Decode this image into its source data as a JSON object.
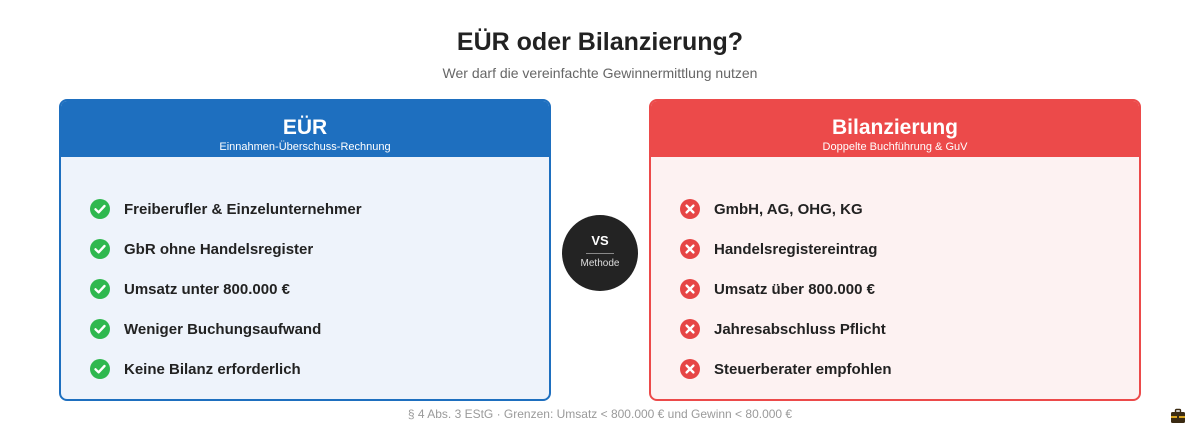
{
  "header": {
    "title": "EÜR oder Bilanzierung?",
    "subtitle": "Wer darf die vereinfachte Gewinnermittlung nutzen"
  },
  "left_card": {
    "title": "EÜR",
    "subtitle": "Einnahmen-Überschuss-Rechnung",
    "accent_color": "#1e6fbf",
    "icon": "check-circle-icon",
    "icon_color": "#2fb84f",
    "items": [
      "Freiberufler & Einzelunternehmer",
      "GbR ohne Handelsregister",
      "Umsatz unter 800.000 €",
      "Weniger Buchungsaufwand",
      "Keine Bilanz erforderlich"
    ]
  },
  "vs_badge": {
    "label": "VS",
    "sublabel": "Methode"
  },
  "right_card": {
    "title": "Bilanzierung",
    "subtitle": "Doppelte Buchführung & GuV",
    "accent_color": "#ec4a4a",
    "icon": "x-circle-icon",
    "icon_color": "#e64545",
    "items": [
      "GmbH, AG, OHG, KG",
      "Handelsregistereintrag",
      "Umsatz über 800.000 €",
      "Jahresabschluss Pflicht",
      "Steuerberater empfohlen"
    ]
  },
  "footer": {
    "note": "§ 4 Abs. 3 EStG · Grenzen: Umsatz < 800.000 € und Gewinn < 80.000 €"
  },
  "corner_icon": "briefcase-icon"
}
